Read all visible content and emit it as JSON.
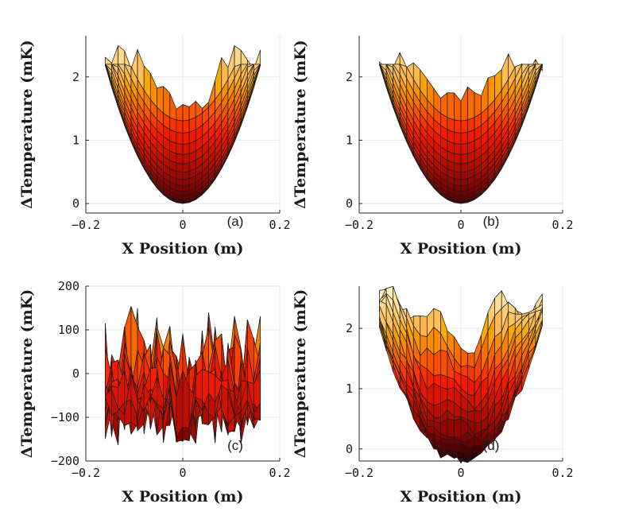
{
  "chart_data": [
    {
      "type": "surface",
      "panel_label": "(a)",
      "xlabel": "X Position (m)",
      "ylabel": "ΔTemperature (mK)",
      "xlim": [
        -0.2,
        0.2
      ],
      "ylim": [
        -0.15,
        2.65
      ],
      "xticks": [
        -0.2,
        0,
        0.2
      ],
      "xtick_labels": [
        "−0.2",
        "0",
        "0.2"
      ],
      "yticks": [
        0,
        1,
        2
      ],
      "ytick_labels": [
        "0",
        "1",
        "2"
      ],
      "grid": true,
      "surface": {
        "model": "paraboloid",
        "x_extent": 0.16,
        "min_value": 0.0,
        "edge_value": 2.2,
        "noise": 0.0,
        "seed": 1
      }
    },
    {
      "type": "surface",
      "panel_label": "(b)",
      "xlabel": "X Position (m)",
      "ylabel": "ΔTemperature (mK)",
      "xlim": [
        -0.2,
        0.2
      ],
      "ylim": [
        -0.15,
        2.65
      ],
      "xticks": [
        -0.2,
        0,
        0.2
      ],
      "xtick_labels": [
        "−0.2",
        "0",
        "0.2"
      ],
      "yticks": [
        0,
        1,
        2
      ],
      "ytick_labels": [
        "0",
        "1",
        "2"
      ],
      "grid": true,
      "surface": {
        "model": "paraboloid",
        "x_extent": 0.16,
        "min_value": 0.0,
        "edge_value": 2.2,
        "noise": 0.0,
        "seed": 2
      }
    },
    {
      "type": "surface",
      "panel_label": "(c)",
      "xlabel": "X Position (m)",
      "ylabel": "ΔTemperature (mK)",
      "xlim": [
        -0.2,
        0.2
      ],
      "ylim": [
        -200,
        200
      ],
      "xticks": [
        -0.2,
        0,
        0.2
      ],
      "xtick_labels": [
        "−0.2",
        "0",
        "0.2"
      ],
      "yticks": [
        -200,
        -100,
        0,
        100,
        200
      ],
      "ytick_labels": [
        "−200",
        "−100",
        "0",
        "100",
        "200"
      ],
      "grid": true,
      "surface": {
        "model": "noise",
        "x_extent": 0.16,
        "min_value": -160,
        "edge_value": 20,
        "noise": 120,
        "seed": 7
      }
    },
    {
      "type": "surface",
      "panel_label": "(d)",
      "xlabel": "X Position (m)",
      "ylabel": "ΔTemperature (mK)",
      "xlim": [
        -0.2,
        0.2
      ],
      "ylim": [
        -0.2,
        2.7
      ],
      "xticks": [
        -0.2,
        0,
        0.2
      ],
      "xtick_labels": [
        "−0.2",
        "0",
        "0.2"
      ],
      "yticks": [
        0,
        1,
        2
      ],
      "ytick_labels": [
        "0",
        "1",
        "2"
      ],
      "grid": true,
      "surface": {
        "model": "bumpy-paraboloid",
        "x_extent": 0.16,
        "min_value": -0.2,
        "edge_value": 2.3,
        "noise": 0.25,
        "seed": 11
      }
    }
  ]
}
